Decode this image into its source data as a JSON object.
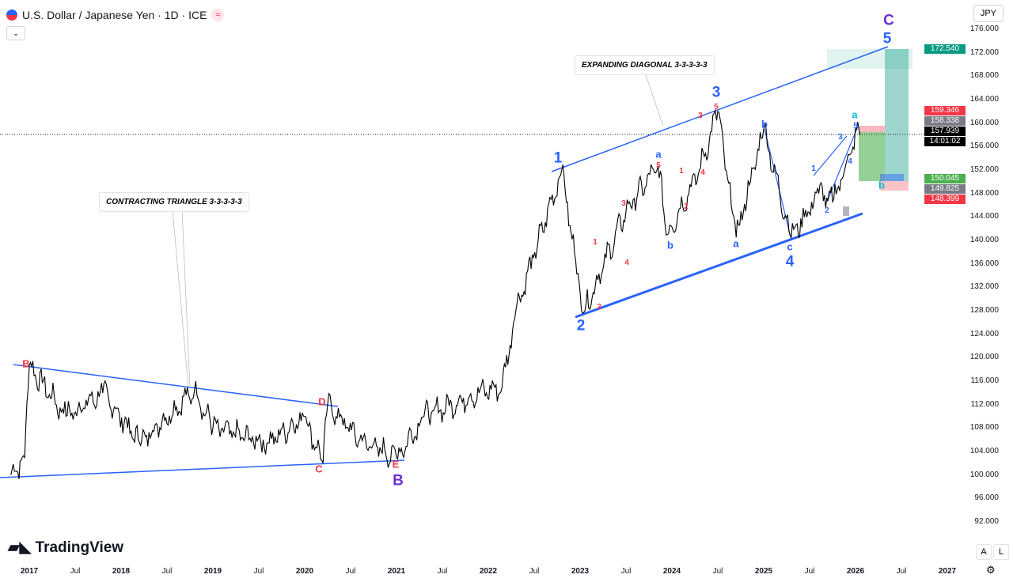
{
  "header": {
    "title": "U.S. Dollar / Japanese Yen · 1D · ICE",
    "realtime_icon": "≈",
    "collapse_icon": "⌄",
    "currency": "JPY"
  },
  "price_axis": [
    "176.000",
    "172.000",
    "168.000",
    "164.000",
    "160.000",
    "156.000",
    "152.000",
    "148.000",
    "144.000",
    "140.000",
    "136.000",
    "132.000",
    "128.000",
    "124.000",
    "120.000",
    "116.000",
    "112.000",
    "108.000",
    "104.000",
    "100.000",
    "96.000",
    "92.000"
  ],
  "price_tags": [
    {
      "v": "172.540",
      "c": "#089981"
    },
    {
      "v": "159.346",
      "c": "#f23645"
    },
    {
      "v": "158.338",
      "c": "#787b86"
    },
    {
      "v": "157.939",
      "c": "#000000"
    },
    {
      "v": "14:01:02",
      "c": "#000000"
    },
    {
      "v": "150.045",
      "c": "#4caf50"
    },
    {
      "v": "149.825",
      "c": "#787b86"
    },
    {
      "v": "148.399",
      "c": "#f23645"
    }
  ],
  "time_axis": [
    {
      "t": "2017",
      "y": true
    },
    {
      "t": "Jul"
    },
    {
      "t": "2018",
      "y": true
    },
    {
      "t": "Jul"
    },
    {
      "t": "2019",
      "y": true
    },
    {
      "t": "Jul"
    },
    {
      "t": "2020",
      "y": true
    },
    {
      "t": "Jul"
    },
    {
      "t": "2021",
      "y": true
    },
    {
      "t": "Jul"
    },
    {
      "t": "2022",
      "y": true
    },
    {
      "t": "Jul"
    },
    {
      "t": "2023",
      "y": true
    },
    {
      "t": "Jul"
    },
    {
      "t": "2024",
      "y": true
    },
    {
      "t": "Jul"
    },
    {
      "t": "2025",
      "y": true
    },
    {
      "t": "Jul"
    },
    {
      "t": "2026",
      "y": true
    },
    {
      "t": "Jul"
    },
    {
      "t": "2027",
      "y": true
    }
  ],
  "annotations": {
    "triangle": "CONTRACTING TRIANGLE 3-3-3-3-3",
    "diagonal": "EXPANDING DIAGONAL 3-3-3-3-3"
  },
  "waves": {
    "B": "B",
    "C": "C",
    "D": "D",
    "E": "E",
    "majB": "B",
    "majC": "C",
    "w1": "1",
    "w2": "2",
    "w3": "3",
    "w4": "4",
    "w5": "5",
    "a": "a",
    "b": "b",
    "c": "c",
    "s1": "1",
    "s2": "2",
    "s3": "3",
    "s4": "4",
    "s5": "5"
  },
  "logo": "TradingView",
  "bottom_buttons": {
    "auto": "A",
    "log": "L"
  },
  "chart_data": {
    "type": "line",
    "series": [
      {
        "name": "USDJPY",
        "points": [
          [
            2016.8,
            100
          ],
          [
            2016.95,
            103
          ],
          [
            2017.0,
            118.7
          ],
          [
            2017.4,
            110
          ],
          [
            2017.8,
            114
          ],
          [
            2018.2,
            105.5
          ],
          [
            2018.8,
            114.5
          ],
          [
            2019.0,
            108
          ],
          [
            2019.6,
            105.5
          ],
          [
            2020.0,
            110
          ],
          [
            2020.2,
            102
          ],
          [
            2020.25,
            112
          ],
          [
            2020.6,
            106
          ],
          [
            2021.0,
            103
          ],
          [
            2021.3,
            110
          ],
          [
            2021.9,
            114
          ],
          [
            2022.15,
            115
          ],
          [
            2022.3,
            128
          ],
          [
            2022.8,
            152
          ],
          [
            2023.04,
            127.7
          ],
          [
            2023.5,
            145
          ],
          [
            2023.85,
            152.7
          ],
          [
            2023.95,
            141
          ],
          [
            2024.3,
            152
          ],
          [
            2024.5,
            162
          ],
          [
            2024.7,
            140.5
          ],
          [
            2025.0,
            159
          ],
          [
            2025.3,
            140.5
          ],
          [
            2025.6,
            148
          ],
          [
            2025.75,
            146.6
          ],
          [
            2026.05,
            159.4
          ]
        ]
      }
    ],
    "last": 157.939,
    "ylim": [
      90,
      178
    ]
  }
}
